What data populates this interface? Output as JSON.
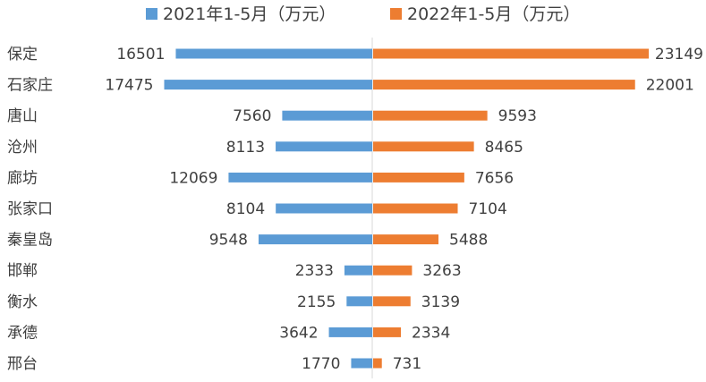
{
  "chart_data": {
    "type": "bar",
    "orientation": "horizontal-diverging",
    "categories": [
      "保定",
      "石家庄",
      "唐山",
      "沧州",
      "廊坊",
      "张家口",
      "秦皇岛",
      "邯郸",
      "衡水",
      "承德",
      "邢台"
    ],
    "series": [
      {
        "name": "2021年1-5月（万元）",
        "color": "#5B9BD5",
        "direction": "left",
        "values": [
          16501,
          17475,
          7560,
          8113,
          12069,
          8104,
          9548,
          2333,
          2155,
          3642,
          1770
        ]
      },
      {
        "name": "2022年1-5月（万元）",
        "color": "#ED7D31",
        "direction": "right",
        "values": [
          23149,
          22001,
          9593,
          8465,
          7656,
          7104,
          5488,
          3263,
          3139,
          2334,
          731
        ]
      }
    ],
    "legend_position": "top",
    "grid": false
  }
}
